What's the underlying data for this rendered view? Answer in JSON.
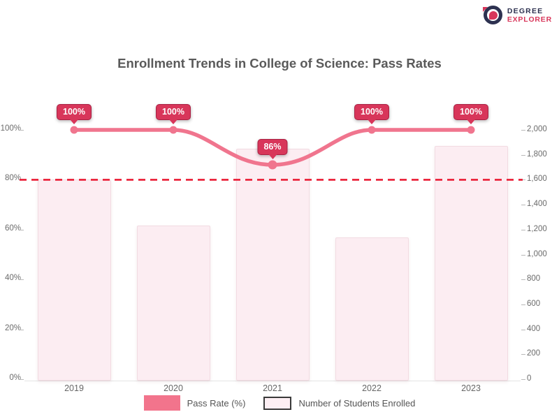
{
  "logo": {
    "line1": "DEGREE",
    "line2": "EXPLORER"
  },
  "chart_data": {
    "type": "bar",
    "subtype": "combo bar+line, dual axis",
    "title": "Enrollment Trends in College of Science: Pass Rates",
    "categories": [
      "2019",
      "2020",
      "2021",
      "2022",
      "2023"
    ],
    "series": [
      {
        "name": "Pass Rate (%)",
        "type": "line",
        "axis": "left",
        "values": [
          100,
          100,
          86,
          100,
          100
        ],
        "point_labels": [
          "100%",
          "100%",
          "86%",
          "100%",
          "100%"
        ],
        "color": "#f0758e"
      },
      {
        "name": "Number of Students Enrolled",
        "type": "bar",
        "axis": "right",
        "values": [
          1600,
          1230,
          1850,
          1140,
          1870
        ],
        "fill": "#fcedf2",
        "border": "#f2dbe2"
      }
    ],
    "threshold_line": {
      "axis": "left",
      "value": 80,
      "color": "#ea1c34",
      "style": "dashed"
    },
    "left_axis": {
      "min": 0,
      "max": 100,
      "ticks": [
        "100%",
        "80%",
        "60%",
        "40%",
        "20%",
        "0%"
      ]
    },
    "right_axis": {
      "min": 0,
      "max": 2000,
      "ticks": [
        "2,000",
        "1,800",
        "1,600",
        "1,400",
        "1,200",
        "1,000",
        "800",
        "600",
        "400",
        "200",
        "0"
      ]
    },
    "grid": false,
    "legend_position": "bottom",
    "badge_color": "#d8365a",
    "badge_border": "#a82244"
  },
  "legend": {
    "items": [
      {
        "label": "Pass Rate (%)",
        "swatch": "#f2748c",
        "kind": "line-series"
      },
      {
        "label": "Number of Students Enrolled",
        "swatch": "#fdeff4",
        "kind": "bar-series"
      }
    ]
  }
}
